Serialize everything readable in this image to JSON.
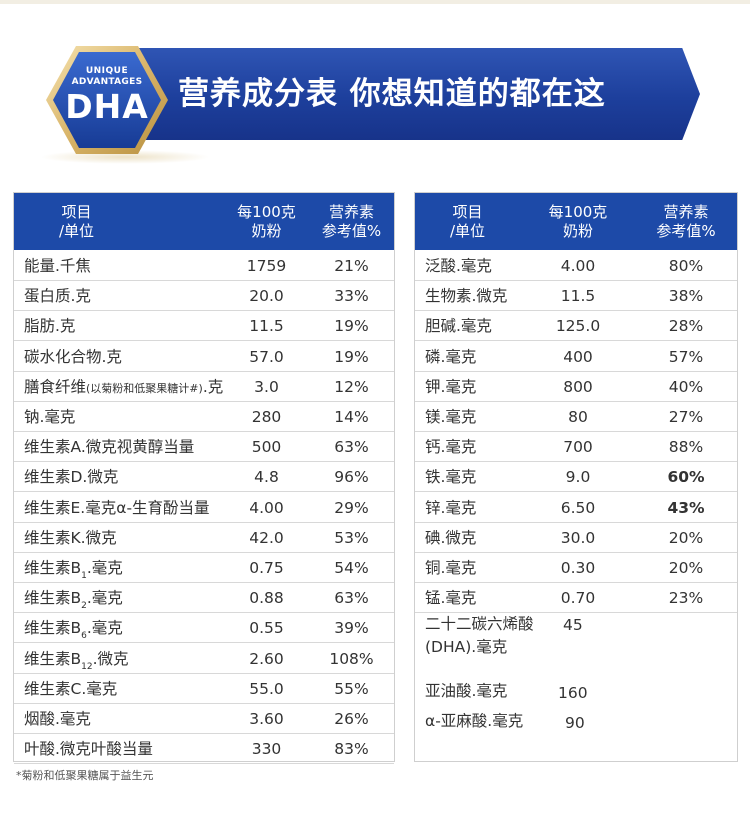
{
  "banner": {
    "badge_line1": "UNIQUE",
    "badge_line2": "ADVANTAGES",
    "badge_line3": "DHA",
    "title": "营养成分表  你想知道的都在这"
  },
  "header": {
    "col1_line1": "项目",
    "col1_line2": "/单位",
    "col2_line1": "每100克",
    "col2_line2": "奶粉",
    "col3_line1": "营养素",
    "col3_line2": "参考值%"
  },
  "left_rows": [
    {
      "name": "能量.千焦",
      "per100": "1759",
      "nrv": "21%"
    },
    {
      "name": "蛋白质.克",
      "per100": "20.0",
      "nrv": "33%"
    },
    {
      "name": "脂肪.克",
      "per100": "11.5",
      "nrv": "19%"
    },
    {
      "name": "碳水化合物.克",
      "per100": "57.0",
      "nrv": "19%"
    },
    {
      "name_a": "膳食纤维",
      "name_b": "(以菊粉和低聚果糖计#)",
      "name_c": ".克",
      "per100": "3.0",
      "nrv": "12%"
    },
    {
      "name": "钠.毫克",
      "per100": "280",
      "nrv": "14%"
    },
    {
      "name": "维生素A.微克视黄醇当量",
      "per100": "500",
      "nrv": "63%"
    },
    {
      "name": "维生素D.微克",
      "per100": "4.8",
      "nrv": "96%"
    },
    {
      "name": "维生素E.毫克α-生育酚当量",
      "per100": "4.00",
      "nrv": "29%"
    },
    {
      "name": "维生素K.微克",
      "per100": "42.0",
      "nrv": "53%"
    },
    {
      "name_a": "维生素B",
      "sub": "1",
      "name_c": ".毫克",
      "per100": "0.75",
      "nrv": "54%"
    },
    {
      "name_a": "维生素B",
      "sub": "2",
      "name_c": ".毫克",
      "per100": "0.88",
      "nrv": "63%"
    },
    {
      "name_a": "维生素B",
      "sub": "6",
      "name_c": ".毫克",
      "per100": "0.55",
      "nrv": "39%"
    },
    {
      "name_a": "维生素B",
      "sub": "12",
      "name_c": ".微克",
      "per100": "2.60",
      "nrv": "108%"
    },
    {
      "name": "维生素C.毫克",
      "per100": "55.0",
      "nrv": "55%"
    },
    {
      "name": "烟酸.毫克",
      "per100": "3.60",
      "nrv": "26%"
    },
    {
      "name": "叶酸.微克叶酸当量",
      "per100": "330",
      "nrv": "83%"
    }
  ],
  "right_rows": [
    {
      "name": "泛酸.毫克",
      "per100": "4.00",
      "nrv": "80%"
    },
    {
      "name": "生物素.微克",
      "per100": "11.5",
      "nrv": "38%"
    },
    {
      "name": "胆碱.毫克",
      "per100": "125.0",
      "nrv": "28%"
    },
    {
      "name": "磷.毫克",
      "per100": "400",
      "nrv": "57%"
    },
    {
      "name": "钾.毫克",
      "per100": "800",
      "nrv": "40%"
    },
    {
      "name": "镁.毫克",
      "per100": "80",
      "nrv": "27%"
    },
    {
      "name": "钙.毫克",
      "per100": "700",
      "nrv": "88%"
    },
    {
      "name": "铁.毫克",
      "per100": "9.0",
      "nrv": "60%"
    },
    {
      "name": "锌.毫克",
      "per100": "6.50",
      "nrv": "43%"
    },
    {
      "name": "碘.微克",
      "per100": "30.0",
      "nrv": "20%"
    },
    {
      "name": "铜.毫克",
      "per100": "0.30",
      "nrv": "20%"
    },
    {
      "name": "锰.毫克",
      "per100": "0.70",
      "nrv": "23%"
    }
  ],
  "right_extra": [
    {
      "name_l1": "二十二碳六烯酸",
      "name_l2": "(DHA).毫克",
      "value": "45"
    },
    {
      "name": "亚油酸.毫克",
      "value": "160"
    },
    {
      "name": "α-亚麻酸.毫克",
      "value": "90"
    }
  ],
  "footnote": "*菊粉和低聚果糖属于益生元",
  "colors": {
    "header_blue": "#1d4aa8",
    "banner_blue": "#1d3f9c",
    "gold": "#d9b56a"
  }
}
